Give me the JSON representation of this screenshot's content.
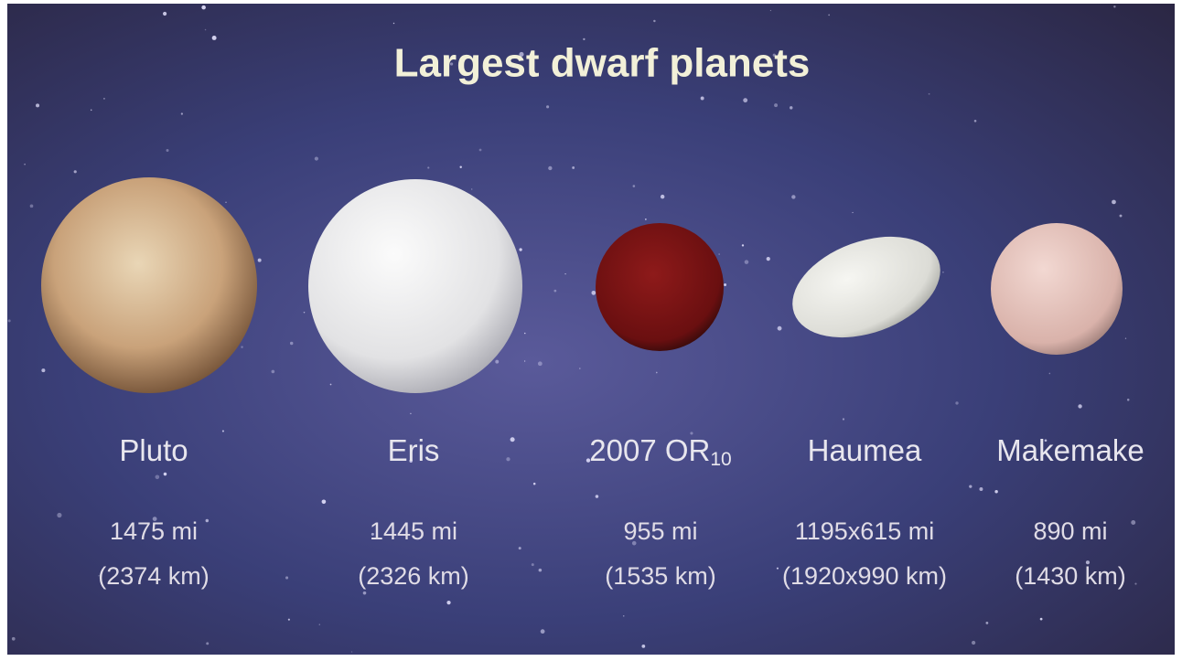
{
  "title": "Largest dwarf planets",
  "planets": [
    {
      "name": "Pluto",
      "size_mi": "1475 mi",
      "size_km": "(2374 km)"
    },
    {
      "name": "Eris",
      "size_mi": "1445 mi",
      "size_km": "(2326 km)"
    },
    {
      "name": "2007 OR",
      "name_sub": "10",
      "size_mi": "955 mi",
      "size_km": "(1535 km)"
    },
    {
      "name": "Haumea",
      "size_mi": "1195x615 mi",
      "size_km": "(1920x990 km)"
    },
    {
      "name": "Makemake",
      "size_mi": "890 mi",
      "size_km": "(1430 km)"
    }
  ]
}
